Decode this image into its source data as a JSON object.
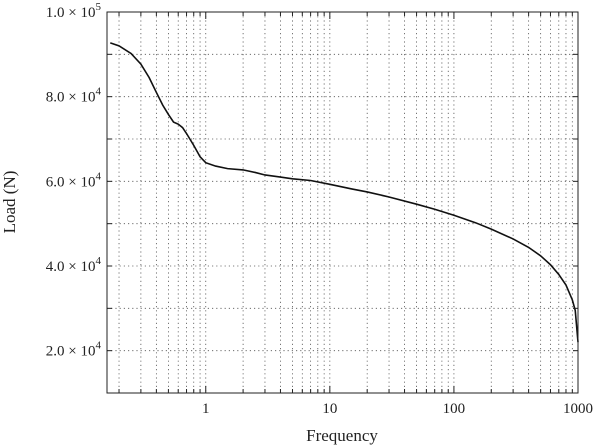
{
  "chart_data": {
    "type": "line",
    "xlabel": "Frequency",
    "ylabel": "Load (N)",
    "x_scale": "log",
    "xlim": [
      0.16,
      1000
    ],
    "ylim": [
      10000,
      100000
    ],
    "grid": true,
    "x_ticks": [
      {
        "value": 1,
        "label": "1"
      },
      {
        "value": 10,
        "label": "10"
      },
      {
        "value": 100,
        "label": "100"
      },
      {
        "value": 1000,
        "label": "1000"
      }
    ],
    "y_ticks": [
      {
        "value": 20000,
        "mantissa": "2.0",
        "exponent": "4"
      },
      {
        "value": 40000,
        "mantissa": "4.0",
        "exponent": "4"
      },
      {
        "value": 60000,
        "mantissa": "6.0",
        "exponent": "4"
      },
      {
        "value": 80000,
        "mantissa": "8.0",
        "exponent": "4"
      },
      {
        "value": 100000,
        "mantissa": "1.0",
        "exponent": "5"
      }
    ],
    "y_tick_times": "×",
    "y_tick_base": "10",
    "y_gridlines": [
      10000,
      20000,
      30000,
      40000,
      50000,
      60000,
      70000,
      80000,
      90000,
      100000
    ],
    "series": [
      {
        "x": [
          0.17,
          0.2,
          0.25,
          0.3,
          0.35,
          0.4,
          0.45,
          0.5,
          0.55,
          0.6,
          0.65,
          0.7,
          0.8,
          0.9,
          1.0,
          1.2,
          1.5,
          2,
          2.5,
          3,
          4,
          5,
          7,
          10,
          15,
          20,
          30,
          50,
          70,
          100,
          150,
          200,
          300,
          400,
          500,
          600,
          700,
          800,
          900,
          950,
          1000
        ],
        "y": [
          92700,
          92000,
          90200,
          87700,
          84500,
          81000,
          78000,
          75800,
          74000,
          73500,
          72700,
          71300,
          68500,
          65800,
          64400,
          63600,
          63000,
          62700,
          62100,
          61500,
          61000,
          60600,
          60200,
          59300,
          58200,
          57500,
          56300,
          54600,
          53400,
          52000,
          50200,
          48700,
          46400,
          44400,
          42400,
          40300,
          38000,
          35500,
          32000,
          29500,
          22000
        ]
      }
    ]
  }
}
